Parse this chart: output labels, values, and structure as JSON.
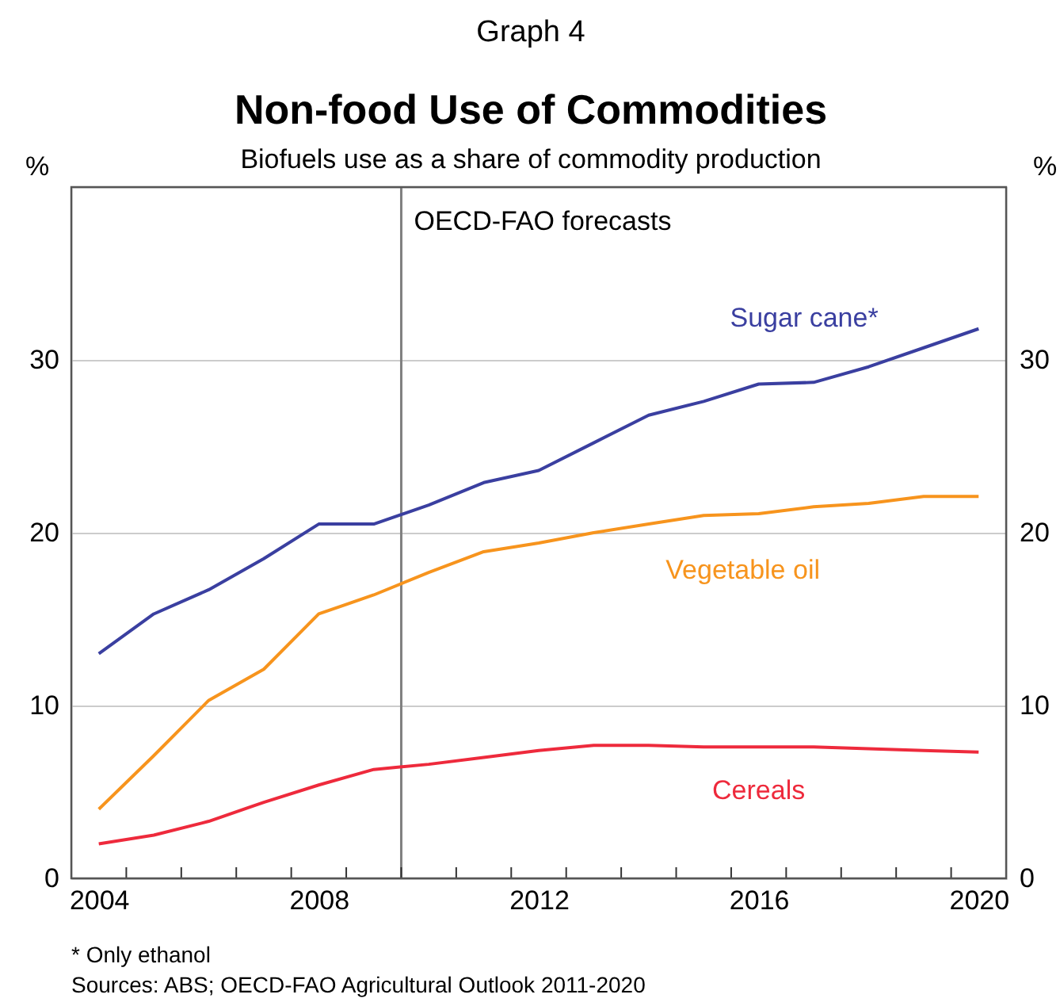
{
  "chart_data": {
    "type": "line",
    "title": "Non-food Use of Commodities",
    "subtitle": "Biofuels use as a share of commodity production",
    "ylabel": "%",
    "y2label": "%",
    "annotations": [
      "Graph 4",
      "* Only ethanol",
      "Sources: ABS; OECD-FAO Agricultural Outlook 2011-2020"
    ],
    "x": [
      2004,
      2005,
      2006,
      2007,
      2008,
      2009,
      2010,
      2011,
      2012,
      2013,
      2014,
      2015,
      2016,
      2017,
      2018,
      2019,
      2020
    ],
    "series": [
      {
        "name": "Sugar cane*",
        "color": "#3a3fa0",
        "values": [
          13.0,
          15.3,
          16.7,
          18.5,
          20.5,
          20.5,
          21.6,
          22.9,
          23.6,
          25.2,
          26.8,
          27.6,
          28.6,
          28.7,
          29.6,
          30.7,
          31.8
        ]
      },
      {
        "name": "Vegetable oil",
        "color": "#f7941d",
        "values": [
          4.0,
          7.1,
          10.3,
          12.1,
          15.3,
          16.4,
          17.7,
          18.9,
          19.4,
          20.0,
          20.5,
          21.0,
          21.1,
          21.5,
          21.7,
          22.1,
          22.1
        ]
      },
      {
        "name": "Cereals",
        "color": "#ee2a3c",
        "values": [
          2.0,
          2.5,
          3.3,
          4.4,
          5.4,
          6.3,
          6.6,
          7.0,
          7.4,
          7.7,
          7.7,
          7.6,
          7.6,
          7.6,
          7.5,
          7.4,
          7.3
        ]
      }
    ],
    "xlim": [
      2003.5,
      2020.5
    ],
    "xticks": [
      2004,
      {
        "value": 2004.5,
        "label": null
      },
      {
        "value": 2005.5,
        "label": null
      },
      {
        "value": 2006.5,
        "label": null
      },
      {
        "value": 2007.5,
        "label": null
      },
      2008,
      {
        "value": 2008.5,
        "label": null
      },
      {
        "value": 2009.5,
        "label": null
      },
      {
        "value": 2010.5,
        "label": null
      },
      {
        "value": 2011.5,
        "label": null
      },
      2012,
      {
        "value": 2012.5,
        "label": null
      },
      {
        "value": 2013.5,
        "label": null
      },
      {
        "value": 2014.5,
        "label": null
      },
      {
        "value": 2015.5,
        "label": null
      },
      2016,
      {
        "value": 2016.5,
        "label": null
      },
      {
        "value": 2017.5,
        "label": null
      },
      {
        "value": 2018.5,
        "label": null
      },
      {
        "value": 2019.5,
        "label": null
      },
      2020
    ],
    "ylim": [
      0,
      40
    ],
    "yticks": [
      0,
      10,
      20,
      30
    ],
    "y2lim": [
      0,
      40
    ],
    "y2ticks": [
      0,
      10,
      20,
      30
    ],
    "ref_lines": [
      {
        "axis": "x",
        "value": 2009.5,
        "label": "OECD-FAO forecasts",
        "color": "#808080"
      }
    ],
    "grid": "y",
    "marker": "none",
    "line_style": "solid"
  }
}
